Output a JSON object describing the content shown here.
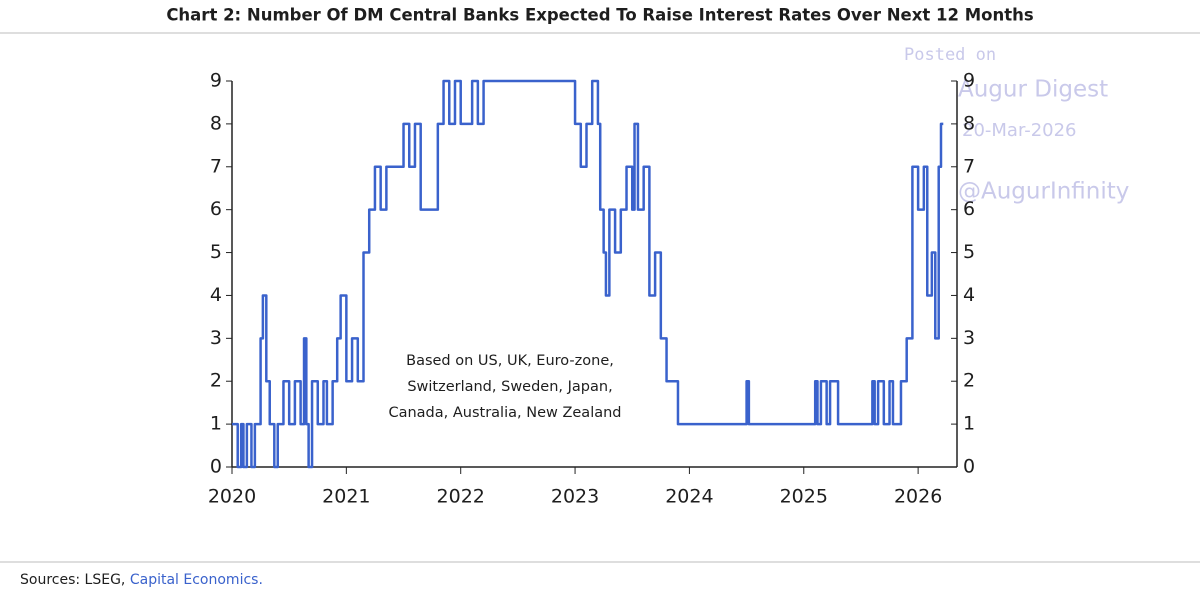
{
  "chart_data": {
    "type": "step",
    "title": "Chart 2: Number Of DM Central Banks Expected To Raise Interest Rates Over Next 12 Months",
    "annotation": [
      "Based on US, UK,  Euro-zone,",
      "Switzerland, Sweden, Japan,",
      "Canada, Australia, New Zealand"
    ],
    "source": [
      "Sources: LSEG,",
      "Capital Economics."
    ],
    "watermark": [
      "Posted on",
      "Augur Digest",
      "20-Mar-2026",
      "@AugurInfinity"
    ],
    "color": "#3a62cc",
    "x": [
      2020.0,
      2020.05,
      2020.08,
      2020.1,
      2020.13,
      2020.17,
      2020.2,
      2020.25,
      2020.27,
      2020.3,
      2020.33,
      2020.37,
      2020.4,
      2020.45,
      2020.5,
      2020.55,
      2020.6,
      2020.63,
      2020.65,
      2020.67,
      2020.7,
      2020.75,
      2020.8,
      2020.83,
      2020.88,
      2020.92,
      2020.95,
      2021.0,
      2021.05,
      2021.1,
      2021.15,
      2021.2,
      2021.25,
      2021.3,
      2021.35,
      2021.45,
      2021.5,
      2021.55,
      2021.6,
      2021.65,
      2021.8,
      2021.85,
      2021.9,
      2021.95,
      2022.0,
      2022.1,
      2022.15,
      2022.2,
      2022.95,
      2023.0,
      2023.05,
      2023.1,
      2023.15,
      2023.2,
      2023.22,
      2023.25,
      2023.27,
      2023.3,
      2023.35,
      2023.4,
      2023.45,
      2023.5,
      2023.52,
      2023.55,
      2023.6,
      2023.65,
      2023.7,
      2023.75,
      2023.8,
      2023.9,
      2024.5,
      2024.52,
      2025.1,
      2025.12,
      2025.15,
      2025.2,
      2025.23,
      2025.3,
      2025.6,
      2025.62,
      2025.65,
      2025.7,
      2025.75,
      2025.78,
      2025.85,
      2025.9,
      2025.95,
      2026.0,
      2026.05,
      2026.08,
      2026.12,
      2026.15,
      2026.18,
      2026.2,
      2026.22
    ],
    "values": [
      1,
      0,
      1,
      0,
      1,
      0,
      1,
      3,
      4,
      2,
      1,
      0,
      1,
      2,
      1,
      2,
      1,
      3,
      1,
      0,
      2,
      1,
      2,
      1,
      2,
      3,
      4,
      2,
      3,
      2,
      5,
      6,
      7,
      6,
      7,
      7,
      8,
      7,
      8,
      6,
      8,
      9,
      8,
      9,
      8,
      9,
      8,
      9,
      9,
      8,
      7,
      8,
      9,
      8,
      6,
      5,
      4,
      6,
      5,
      6,
      7,
      6,
      8,
      6,
      7,
      4,
      5,
      3,
      2,
      1,
      2,
      1,
      2,
      1,
      2,
      1,
      2,
      1,
      2,
      1,
      2,
      1,
      2,
      1,
      2,
      3,
      7,
      6,
      7,
      4,
      5,
      3,
      7,
      8,
      8
    ],
    "xlim": [
      2020,
      2026.34
    ],
    "xticks": [
      2020,
      2021,
      2022,
      2023,
      2024,
      2025,
      2026
    ],
    "ylim": [
      0,
      9
    ],
    "yticks": [
      0,
      1,
      2,
      3,
      4,
      5,
      6,
      7,
      8,
      9
    ],
    "y2lim": [
      0,
      9
    ],
    "y2ticks": [
      0,
      1,
      2,
      3,
      4,
      5,
      6,
      7,
      8,
      9
    ]
  }
}
